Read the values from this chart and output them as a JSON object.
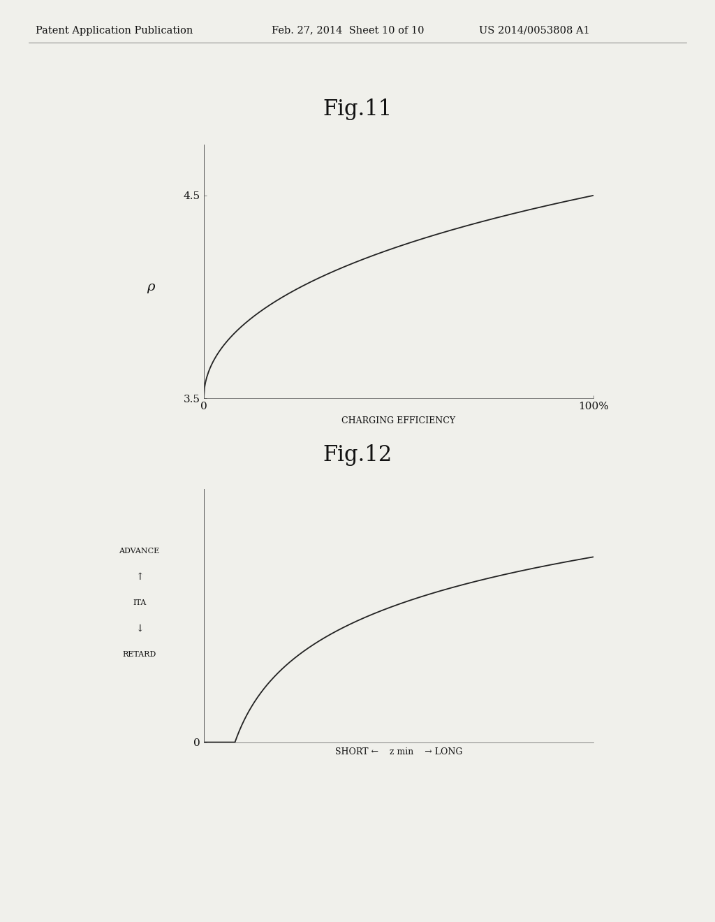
{
  "background_color": "#f0f0eb",
  "header_text": "Patent Application Publication",
  "header_date": "Feb. 27, 2014  Sheet 10 of 10",
  "header_patent": "US 2014/0053808 A1",
  "fig11_title": "Fig.11",
  "fig11_ylabel": "ρ",
  "fig11_xlabel": "CHARGING EFFICIENCY",
  "fig11_yticks": [
    3.5,
    4.5
  ],
  "fig11_xtick_labels": [
    "0",
    "100%"
  ],
  "fig11_ylim": [
    3.5,
    4.75
  ],
  "fig11_xlim": [
    0,
    100
  ],
  "fig12_title": "Fig.12",
  "fig12_ylabel_advance": "ADVANCE",
  "fig12_ylabel_ita": "ITA",
  "fig12_ylabel_retard": "RETARD",
  "fig12_xlabel": "SHORT ←    z min    → LONG",
  "fig12_ytick_label": "0",
  "fig12_ylim": [
    0,
    1.3
  ],
  "fig12_xlim": [
    0,
    100
  ],
  "line_color": "#222222",
  "text_color": "#111111",
  "axis_color": "#555555",
  "font_family": "serif",
  "header_fontsize": 10.5,
  "title_fontsize": 22,
  "tick_fontsize": 11,
  "label_fontsize": 9,
  "rho_fontsize": 14
}
